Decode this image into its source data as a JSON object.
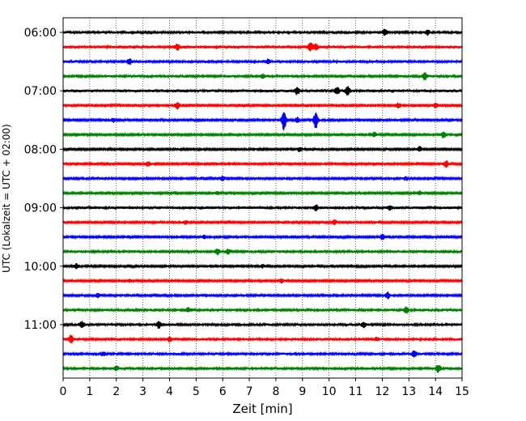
{
  "chart_data": {
    "type": "line",
    "title": "",
    "xlabel": "Zeit  [min]",
    "ylabel": "UTC (Lokalzeit = UTC + 02:00)",
    "xlim": [
      0,
      15
    ],
    "x_ticks": [
      "0",
      "1",
      "2",
      "3",
      "4",
      "5",
      "6",
      "7",
      "8",
      "9",
      "10",
      "11",
      "12",
      "13",
      "14",
      "15"
    ],
    "y_tick_labels": [
      "06:00",
      "07:00",
      "08:00",
      "09:00",
      "10:00",
      "11:00"
    ],
    "grid": "vertical dotted lines at every minute",
    "color_cycle": [
      "#000000",
      "#ff0000",
      "#0000ff",
      "#008000"
    ],
    "traces": [
      {
        "start": "06:00",
        "color": "#000000",
        "level": 0.35,
        "events": [
          [
            12.1,
            0.7
          ],
          [
            13.7,
            0.6
          ]
        ]
      },
      {
        "start": "06:15",
        "color": "#ff0000",
        "level": 0.4,
        "events": [
          [
            4.3,
            0.7
          ],
          [
            9.5,
            0.8
          ],
          [
            9.3,
            1.0
          ]
        ]
      },
      {
        "start": "06:30",
        "color": "#0000ff",
        "level": 0.35,
        "events": [
          [
            2.5,
            0.7
          ],
          [
            7.7,
            0.5
          ]
        ]
      },
      {
        "start": "06:45",
        "color": "#008000",
        "level": 0.35,
        "events": [
          [
            13.6,
            0.9
          ],
          [
            7.5,
            0.5
          ]
        ]
      },
      {
        "start": "07:00",
        "color": "#000000",
        "level": 0.4,
        "events": [
          [
            8.8,
            0.8
          ],
          [
            10.7,
            1.1
          ],
          [
            10.3,
            0.8
          ]
        ]
      },
      {
        "start": "07:15",
        "color": "#ff0000",
        "level": 0.3,
        "events": [
          [
            4.3,
            0.9
          ],
          [
            12.6,
            0.6
          ],
          [
            14.0,
            0.6
          ]
        ]
      },
      {
        "start": "07:30",
        "color": "#0000ff",
        "level": 0.3,
        "events": [
          [
            8.3,
            2.4
          ],
          [
            9.5,
            2.2
          ],
          [
            8.8,
            0.7
          ],
          [
            1.9,
            0.5
          ]
        ]
      },
      {
        "start": "07:45",
        "color": "#008000",
        "level": 0.3,
        "events": [
          [
            14.3,
            0.8
          ],
          [
            11.7,
            0.5
          ]
        ]
      },
      {
        "start": "08:00",
        "color": "#000000",
        "level": 0.3,
        "events": [
          [
            13.4,
            0.6
          ],
          [
            8.9,
            0.5
          ]
        ]
      },
      {
        "start": "08:15",
        "color": "#ff0000",
        "level": 0.3,
        "events": [
          [
            14.4,
            0.8
          ],
          [
            3.2,
            0.5
          ]
        ]
      },
      {
        "start": "08:30",
        "color": "#0000ff",
        "level": 0.3,
        "events": [
          [
            6.0,
            0.6
          ],
          [
            12.9,
            0.5
          ]
        ]
      },
      {
        "start": "08:45",
        "color": "#008000",
        "level": 0.3,
        "events": [
          [
            5.8,
            0.4
          ],
          [
            13.4,
            0.5
          ]
        ]
      },
      {
        "start": "09:00",
        "color": "#000000",
        "level": 0.4,
        "events": [
          [
            9.5,
            0.6
          ],
          [
            12.3,
            0.5
          ]
        ]
      },
      {
        "start": "09:15",
        "color": "#ff0000",
        "level": 0.3,
        "events": [
          [
            10.2,
            0.6
          ],
          [
            4.6,
            0.4
          ]
        ]
      },
      {
        "start": "09:30",
        "color": "#0000ff",
        "level": 0.3,
        "events": [
          [
            12.0,
            0.7
          ],
          [
            5.3,
            0.4
          ]
        ]
      },
      {
        "start": "09:45",
        "color": "#008000",
        "level": 0.35,
        "events": [
          [
            5.8,
            0.8
          ],
          [
            6.2,
            0.6
          ]
        ]
      },
      {
        "start": "10:00",
        "color": "#000000",
        "level": 0.3,
        "events": [
          [
            0.5,
            0.6
          ],
          [
            7.5,
            0.4
          ]
        ]
      },
      {
        "start": "10:15",
        "color": "#ff0000",
        "level": 0.3,
        "events": [
          [
            8.2,
            0.5
          ],
          [
            2.5,
            0.4
          ]
        ]
      },
      {
        "start": "10:30",
        "color": "#0000ff",
        "level": 0.3,
        "events": [
          [
            12.2,
            0.8
          ],
          [
            1.3,
            0.6
          ]
        ]
      },
      {
        "start": "10:45",
        "color": "#008000",
        "level": 0.35,
        "events": [
          [
            12.9,
            0.8
          ],
          [
            4.7,
            0.5
          ]
        ]
      },
      {
        "start": "11:00",
        "color": "#000000",
        "level": 0.35,
        "events": [
          [
            0.7,
            0.8
          ],
          [
            3.6,
            0.8
          ],
          [
            11.3,
            0.7
          ]
        ]
      },
      {
        "start": "11:15",
        "color": "#ff0000",
        "level": 0.35,
        "events": [
          [
            0.3,
            1.0
          ],
          [
            4.0,
            0.5
          ],
          [
            11.8,
            0.4
          ]
        ]
      },
      {
        "start": "11:30",
        "color": "#0000ff",
        "level": 0.35,
        "events": [
          [
            13.2,
            0.8
          ],
          [
            1.5,
            0.5
          ]
        ]
      },
      {
        "start": "11:45",
        "color": "#008000",
        "level": 0.35,
        "events": [
          [
            14.1,
            0.9
          ],
          [
            2.0,
            0.5
          ]
        ]
      }
    ]
  }
}
